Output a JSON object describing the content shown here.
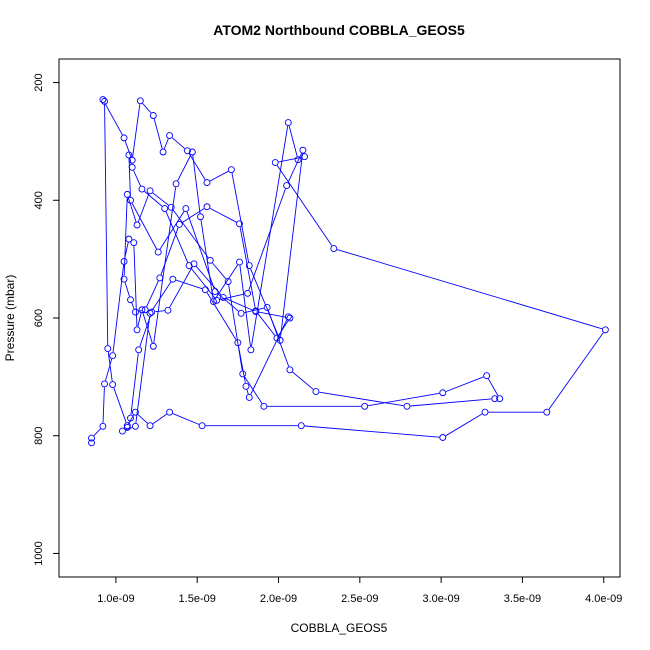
{
  "chart_data": {
    "type": "line",
    "title": "ATOM2 Northbound COBBLA_GEOS5",
    "xlabel": "COBBLA_GEOS5",
    "ylabel": "Pressure (mbar)",
    "x_scale": "linear",
    "y_inverted": true,
    "xlim": [
      6.5e-10,
      4.1e-09
    ],
    "ylim": [
      1040,
      160
    ],
    "xticks": [
      {
        "value": 1e-09,
        "label": "1.0e-09"
      },
      {
        "value": 1.5e-09,
        "label": "1.5e-09"
      },
      {
        "value": 2e-09,
        "label": "2.0e-09"
      },
      {
        "value": 2.5e-09,
        "label": "2.5e-09"
      },
      {
        "value": 3e-09,
        "label": "3.0e-09"
      },
      {
        "value": 3.5e-09,
        "label": "3.5e-09"
      },
      {
        "value": 4e-09,
        "label": "4.0e-09"
      }
    ],
    "yticks": [
      {
        "value": 200,
        "label": "200"
      },
      {
        "value": 400,
        "label": "400"
      },
      {
        "value": 600,
        "label": "600"
      },
      {
        "value": 800,
        "label": "800"
      },
      {
        "value": 1000,
        "label": "1000"
      }
    ],
    "grid": false,
    "legend": "none",
    "color": "#0000ff",
    "series": [
      {
        "marker": "open-circle",
        "x": [
          8.5e-10,
          8.5e-10,
          9.2e-10,
          9.3e-10,
          9.8e-10,
          1.05e-09,
          1.08e-09,
          1.11e-09,
          1.13e-09,
          1.16e-09,
          1.23e-09,
          1.37e-09,
          1.47e-09,
          1.52e-09,
          1.6e-09,
          1.76e-09,
          1.83e-09,
          2.06e-09,
          2.12e-09,
          2.16e-09,
          1.98e-09,
          2.34e-09,
          4.01e-09,
          3.65e-09,
          3.27e-09,
          3.01e-09,
          2.14e-09,
          1.53e-09,
          1.33e-09,
          1.21e-09,
          1.12e-09,
          1.07e-09,
          9.8e-10,
          9.5e-10,
          9.3e-10,
          9.2e-10,
          1.05e-09,
          1.1e-09,
          1.15e-09,
          1.23e-09,
          1.29e-09,
          1.33e-09,
          1.44e-09,
          1.56e-09,
          1.71e-09,
          1.82e-09,
          2.01e-09,
          2.15e-09,
          2.05e-09,
          1.81e-09,
          1.62e-09,
          1.45e-09,
          1.3e-09,
          1.16e-09,
          1.1e-09,
          1.08e-09,
          1.09e-09,
          1.26e-09,
          1.43e-09,
          1.61e-09,
          1.77e-09,
          1.93e-09,
          2.07e-09,
          2.23e-09,
          2.79e-09,
          3.33e-09,
          3.36e-09,
          3.28e-09,
          3.01e-09,
          2.53e-09,
          1.91e-09,
          1.78e-09,
          1.69e-09,
          1.58e-09,
          1.34e-09,
          1.21e-09,
          1.13e-09,
          1.07e-09,
          1.05e-09,
          1.09e-09,
          1.12e-09,
          1.18e-09,
          1.27e-09,
          1.39e-09,
          1.56e-09,
          1.76e-09,
          1.86e-09,
          1.99e-09,
          2.07e-09,
          1.86e-09,
          1.66e-09,
          1.48e-09,
          1.32e-09,
          1.22e-09,
          1.14e-09,
          1.09e-09,
          1.07e-09,
          1.04e-09,
          1.12e-09,
          1.21e-09,
          1.35e-09,
          1.55e-09,
          1.75e-09,
          1.8e-09,
          1.82e-09,
          2.06e-09
        ],
        "y": [
          812,
          804,
          784,
          712,
          664,
          504,
          466,
          472,
          620,
          586,
          648,
          372,
          318,
          428,
          572,
          505,
          654,
          268,
          331,
          326,
          336,
          482,
          620,
          760,
          760,
          803,
          783,
          783,
          760,
          783,
          760,
          783,
          713,
          652,
          232,
          229,
          294,
          332,
          231,
          256,
          318,
          290,
          316,
          370,
          348,
          511,
          638,
          315,
          375,
          558,
          570,
          511,
          414,
          381,
          344,
          323,
          400,
          488,
          414,
          555,
          592,
          582,
          688,
          725,
          750,
          737,
          737,
          698,
          727,
          750,
          750,
          695,
          538,
          502,
          412,
          384,
          442,
          390,
          534,
          569,
          590,
          586,
          532,
          441,
          411,
          440,
          588,
          634,
          600,
          589,
          565,
          508,
          587,
          590,
          654,
          770,
          786,
          792,
          784,
          592,
          534,
          552,
          642,
          716,
          735,
          598
        ]
      }
    ]
  }
}
